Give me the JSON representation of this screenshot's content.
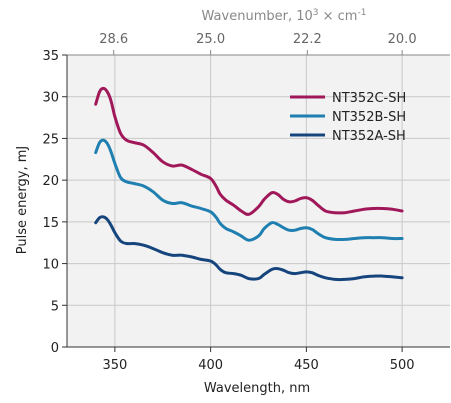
{
  "chart_data": {
    "type": "line",
    "xlabel": "Wavelength, nm",
    "ylabel": "Pulse energy, mJ",
    "top_axis": {
      "title_prefix": "Wavenumber, 10",
      "title_exp": "3",
      "title_suffix": " × cm",
      "title_unit_exp": "-1",
      "tick_positions_nm": [
        349.4,
        400,
        450.5,
        500
      ],
      "tick_labels": [
        "28.6",
        "25.0",
        "22.2",
        "20.0"
      ]
    },
    "xlim": [
      325,
      525
    ],
    "ylim": [
      0,
      35
    ],
    "xticks": [
      350,
      400,
      450,
      500
    ],
    "yticks": [
      0,
      5,
      10,
      15,
      20,
      25,
      30,
      35
    ],
    "grid": true,
    "legend_position": "top-right",
    "colors": {
      "background": "#f2f2f2",
      "grid": "#c8c8c8"
    },
    "series": [
      {
        "name": "NT352C-SH",
        "color": "#a0185a",
        "x": [
          340,
          342,
          344,
          346,
          348,
          350,
          353,
          356,
          360,
          365,
          370,
          375,
          380,
          385,
          390,
          395,
          400,
          403,
          405,
          408,
          412,
          416,
          420,
          425,
          428,
          432,
          435,
          438,
          441,
          444,
          447,
          450,
          453,
          456,
          460,
          465,
          470,
          475,
          480,
          485,
          490,
          495,
          500
        ],
        "y": [
          29.1,
          30.6,
          31.0,
          30.6,
          29.5,
          27.6,
          25.6,
          24.8,
          24.5,
          24.2,
          23.3,
          22.2,
          21.7,
          21.8,
          21.3,
          20.7,
          20.2,
          19.2,
          18.3,
          17.6,
          17.0,
          16.3,
          15.9,
          16.8,
          17.7,
          18.5,
          18.3,
          17.7,
          17.4,
          17.5,
          17.8,
          17.9,
          17.6,
          17.0,
          16.3,
          16.1,
          16.1,
          16.3,
          16.5,
          16.6,
          16.6,
          16.5,
          16.3
        ]
      },
      {
        "name": "NT352B-SH",
        "color": "#1f7fb0",
        "x": [
          340,
          342,
          344,
          346,
          348,
          350,
          353,
          356,
          360,
          365,
          370,
          375,
          380,
          385,
          390,
          395,
          400,
          403,
          405,
          408,
          412,
          416,
          420,
          425,
          428,
          432,
          435,
          438,
          441,
          444,
          447,
          450,
          453,
          456,
          460,
          465,
          470,
          475,
          480,
          485,
          490,
          495,
          500
        ],
        "y": [
          23.3,
          24.5,
          24.8,
          24.4,
          23.4,
          22.0,
          20.3,
          19.8,
          19.6,
          19.3,
          18.6,
          17.6,
          17.2,
          17.3,
          16.9,
          16.6,
          16.2,
          15.5,
          14.8,
          14.2,
          13.8,
          13.3,
          12.8,
          13.3,
          14.2,
          14.9,
          14.7,
          14.3,
          14.0,
          14.0,
          14.2,
          14.3,
          14.1,
          13.6,
          13.1,
          12.9,
          12.9,
          13.0,
          13.1,
          13.1,
          13.1,
          13.0,
          13.0
        ]
      },
      {
        "name": "NT352A-SH",
        "color": "#16457d",
        "x": [
          340,
          342,
          344,
          346,
          348,
          350,
          353,
          356,
          360,
          365,
          370,
          375,
          380,
          385,
          390,
          395,
          400,
          403,
          405,
          408,
          412,
          416,
          420,
          425,
          428,
          432,
          435,
          438,
          441,
          444,
          447,
          450,
          453,
          456,
          460,
          465,
          470,
          475,
          480,
          485,
          490,
          495,
          500
        ],
        "y": [
          14.9,
          15.5,
          15.6,
          15.3,
          14.6,
          13.7,
          12.7,
          12.4,
          12.4,
          12.2,
          11.8,
          11.3,
          11.0,
          11.0,
          10.8,
          10.5,
          10.3,
          9.8,
          9.3,
          8.9,
          8.8,
          8.6,
          8.2,
          8.2,
          8.7,
          9.3,
          9.4,
          9.2,
          8.9,
          8.8,
          8.9,
          9.0,
          8.9,
          8.6,
          8.3,
          8.1,
          8.1,
          8.2,
          8.4,
          8.5,
          8.5,
          8.4,
          8.3
        ]
      }
    ]
  }
}
